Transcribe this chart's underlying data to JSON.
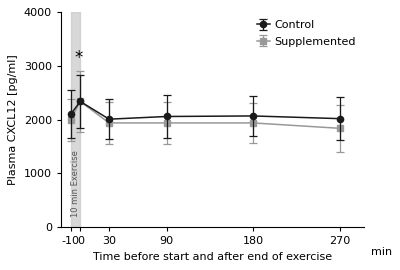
{
  "x_positions": [
    -10,
    0,
    30,
    90,
    180,
    270
  ],
  "x_labels": [
    "-10",
    "0",
    "30",
    "90",
    "180",
    "270"
  ],
  "control_y": [
    2100,
    2340,
    2010,
    2060,
    2070,
    2020
  ],
  "control_yerr": [
    450,
    500,
    370,
    400,
    380,
    400
  ],
  "supp_y": [
    2000,
    2340,
    1940,
    1940,
    1940,
    1840
  ],
  "supp_yerr": [
    390,
    560,
    390,
    390,
    370,
    440
  ],
  "shade_x_start": -10,
  "shade_x_end": 0,
  "shade_color": "#c8c8c8",
  "shade_alpha": 0.7,
  "shade_label": "10 min Exercise",
  "control_color": "#1a1a1a",
  "supp_color": "#999999",
  "ylabel": "Plasma CXCL12 [pg/ml]",
  "xlabel": "Time before start and after end of exercise",
  "min_label": "min",
  "ylim": [
    0,
    4000
  ],
  "yticks": [
    0,
    1000,
    2000,
    3000,
    4000
  ],
  "xlim": [
    -20,
    295
  ],
  "legend_control": "Control",
  "legend_supp": "Supplemented",
  "star_x": -1.5,
  "star_y": 3150,
  "axis_fontsize": 8,
  "tick_fontsize": 8,
  "legend_fontsize": 8
}
